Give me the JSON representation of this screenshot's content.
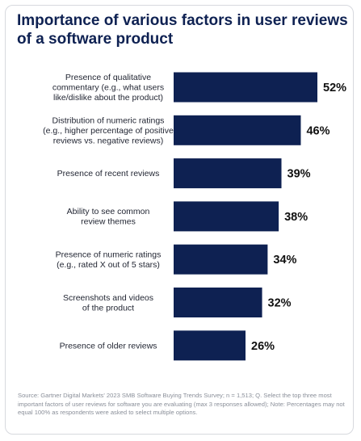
{
  "title": "Importance of various factors in user reviews of a software product",
  "source": "Source: Gartner Digital Markets' 2023 SMB Software Buying Trends Survey; n = 1,513; Q. Select the top three most important factors of user reviews for software you are evaluating (max 3 responses allowed); Note: Percentages may not equal 100% as respondents were asked to select multiple options.",
  "colors": {
    "bar": "#0e2152",
    "title": "#0e2152",
    "source_text": "#8a8f99"
  },
  "chart_data": {
    "type": "bar",
    "orientation": "horizontal",
    "title": "Importance of various factors in user reviews of a software product",
    "xlabel": "",
    "ylabel": "",
    "xlim": [
      0,
      52
    ],
    "grid": false,
    "legend": "none",
    "categories": [
      [
        "Presence of qualitative",
        "commentary (e.g., what users",
        "like/dislike about the product)"
      ],
      [
        "Distribution of numeric ratings",
        "(e.g., higher percentage of positive",
        "reviews vs. negative reviews)"
      ],
      [
        "Presence of recent reviews"
      ],
      [
        "Ability to see common",
        "review themes"
      ],
      [
        "Presence of numeric ratings",
        "(e.g., rated X out of 5 stars)"
      ],
      [
        "Screenshots and videos",
        "of the product"
      ],
      [
        "Presence of older reviews"
      ]
    ],
    "values": [
      52,
      46,
      39,
      38,
      34,
      32,
      26
    ],
    "value_labels": [
      "52%",
      "46%",
      "39%",
      "38%",
      "34%",
      "32%",
      "26%"
    ]
  }
}
